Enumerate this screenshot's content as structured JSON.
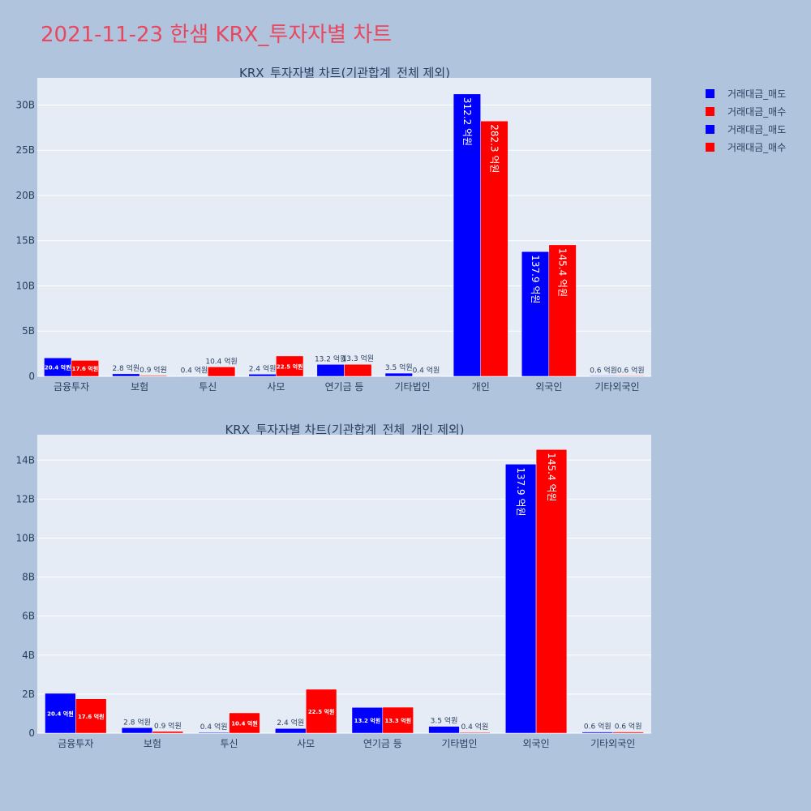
{
  "title": "2021-11-23 한샘 KRX_투자자별 차트",
  "legend": [
    {
      "name": "거래대금_매도",
      "color": "#0000ff"
    },
    {
      "name": "거래대금_매수",
      "color": "#ff0000"
    },
    {
      "name": "거래대금_매도",
      "color": "#0000ff"
    },
    {
      "name": "거래대금_매수",
      "color": "#ff0000"
    }
  ],
  "chart_data": [
    {
      "type": "bar",
      "title": "KRX_투자자별 차트(기관합계_전체 제외)",
      "categories": [
        "금융투자",
        "보험",
        "투신",
        "사모",
        "연기금 등",
        "기타법인",
        "개인",
        "외국인",
        "기타외국인"
      ],
      "yticks": [
        0,
        5,
        10,
        15,
        20,
        25,
        30
      ],
      "ytick_labels": [
        "0",
        "5B",
        "10B",
        "15B",
        "20B",
        "25B",
        "30B"
      ],
      "ylim": [
        0,
        33
      ],
      "series": [
        {
          "name": "거래대금_매도",
          "color": "#0000ff",
          "values": [
            2.04,
            0.28,
            0.04,
            0.24,
            1.32,
            0.35,
            31.22,
            13.79,
            0.06
          ],
          "labels": [
            "20.4 억원",
            "2.8 억원",
            "0.4 억원",
            "2.4 억원",
            "13.2 억원",
            "3.5 억원",
            "312.2 억원",
            "137.9 억원",
            "0.6 억원"
          ]
        },
        {
          "name": "거래대금_매수",
          "color": "#ff0000",
          "values": [
            1.76,
            0.09,
            1.04,
            2.25,
            1.33,
            0.04,
            28.23,
            14.54,
            0.06
          ],
          "labels": [
            "17.6 억원",
            "0.9 억원",
            "10.4 억원",
            "22.5 억원",
            "13.3 억원",
            "0.4 억원",
            "282.3 억원",
            "145.4 억원",
            "0.6 억원"
          ]
        }
      ]
    },
    {
      "type": "bar",
      "title": "KRX_투자자별 차트(기관합계_전체_개인 제외)",
      "categories": [
        "금융투자",
        "보험",
        "투신",
        "사모",
        "연기금 등",
        "기타법인",
        "외국인",
        "기타외국인"
      ],
      "yticks": [
        0,
        2,
        4,
        6,
        8,
        10,
        12,
        14
      ],
      "ytick_labels": [
        "0",
        "2B",
        "4B",
        "6B",
        "8B",
        "10B",
        "12B",
        "14B"
      ],
      "ylim": [
        0,
        15.3
      ],
      "series": [
        {
          "name": "거래대금_매도",
          "color": "#0000ff",
          "values": [
            2.04,
            0.28,
            0.04,
            0.24,
            1.32,
            0.35,
            13.79,
            0.06
          ],
          "labels": [
            "20.4 억원",
            "2.8 억원",
            "0.4 억원",
            "2.4 억원",
            "13.2 억원",
            "3.5 억원",
            "137.9 억원",
            "0.6 억원"
          ]
        },
        {
          "name": "거래대금_매수",
          "color": "#ff0000",
          "values": [
            1.76,
            0.09,
            1.04,
            2.25,
            1.33,
            0.04,
            14.54,
            0.06
          ],
          "labels": [
            "17.6 억원",
            "0.9 억원",
            "10.4 억원",
            "22.5 억원",
            "13.3 억원",
            "0.4 억원",
            "145.4 억원",
            "0.6 억원"
          ]
        }
      ]
    }
  ]
}
